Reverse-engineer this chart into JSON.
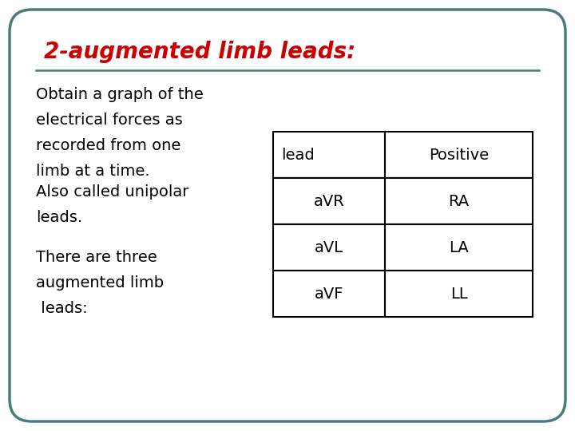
{
  "title": "2-augmented limb leads:",
  "title_color": "#cc0000",
  "title_fontsize": 20,
  "separator_color": "#4a7c7c",
  "paragraphs": [
    [
      "Obtain a graph of the",
      "electrical forces as",
      "recorded from one",
      "limb at a time."
    ],
    [
      "Also called unipolar",
      "leads."
    ],
    [
      "There are three",
      "augmented limb",
      " leads:"
    ]
  ],
  "body_fontsize": 14,
  "body_color": "#000000",
  "table_headers": [
    "lead",
    "Positive"
  ],
  "table_rows": [
    [
      "aVR",
      "RA"
    ],
    [
      "aVL",
      "LA"
    ],
    [
      "aVF",
      "LL"
    ]
  ],
  "table_fontsize": 14,
  "bg_color": "#ffffff",
  "border_color": "#4a7c7c",
  "border_linewidth": 2.5
}
